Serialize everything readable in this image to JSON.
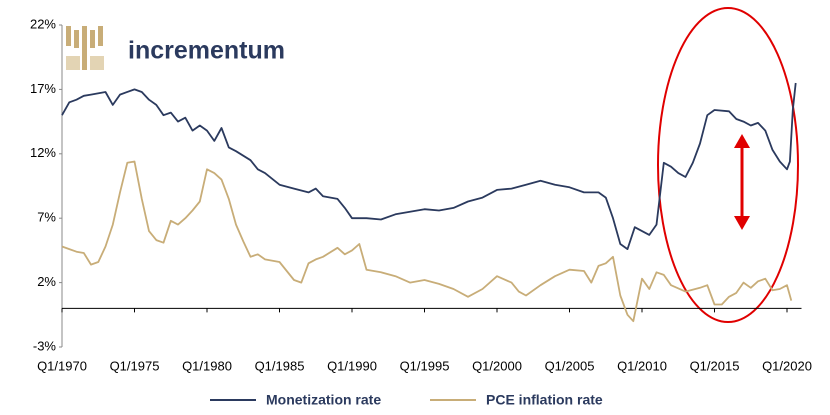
{
  "chart_data": {
    "type": "line",
    "brand": "incrementum",
    "xlim": [
      1970,
      2021
    ],
    "xticks": [
      {
        "value": 1970,
        "label": "Q1/1970"
      },
      {
        "value": 1975,
        "label": "Q1/1975"
      },
      {
        "value": 1980,
        "label": "Q1/1980"
      },
      {
        "value": 1985,
        "label": "Q1/1985"
      },
      {
        "value": 1990,
        "label": "Q1/1990"
      },
      {
        "value": 1995,
        "label": "Q1/1995"
      },
      {
        "value": 2000,
        "label": "Q1/2000"
      },
      {
        "value": 2005,
        "label": "Q1/2005"
      },
      {
        "value": 2010,
        "label": "Q1/2010"
      },
      {
        "value": 2015,
        "label": "Q1/2015"
      },
      {
        "value": 2020,
        "label": "Q1/2020"
      }
    ],
    "ylim": [
      -3,
      22
    ],
    "yticks": [
      {
        "value": 22,
        "label": "22%"
      },
      {
        "value": 17,
        "label": "17%"
      },
      {
        "value": 12,
        "label": "12%"
      },
      {
        "value": 7,
        "label": "7%"
      },
      {
        "value": 2,
        "label": "2%"
      },
      {
        "value": -3,
        "label": "-3%"
      }
    ],
    "legend": "bottom",
    "series": [
      {
        "name": "Monetization rate",
        "color": "#2b3a5e",
        "x": [
          1970,
          1970.5,
          1971,
          1971.5,
          1972,
          1973,
          1973.5,
          1974,
          1975,
          1975.5,
          1976,
          1976.5,
          1977,
          1977.5,
          1978,
          1978.5,
          1979,
          1979.5,
          1980,
          1980.5,
          1981,
          1981.5,
          1982,
          1983,
          1983.5,
          1984,
          1985,
          1986,
          1987,
          1987.5,
          1988,
          1989,
          1989.5,
          1990,
          1991,
          1992,
          1993,
          1994,
          1995,
          1996,
          1997,
          1998,
          1999,
          2000,
          2001,
          2002,
          2003,
          2004,
          2005,
          2006,
          2007,
          2007.5,
          2008,
          2008.5,
          2009,
          2009.5,
          2010,
          2010.5,
          2011,
          2011.5,
          2012,
          2012.5,
          2013,
          2013.5,
          2014,
          2014.5,
          2015,
          2016,
          2016.5,
          2017,
          2017.5,
          2018,
          2018.5,
          2019,
          2019.5,
          2020,
          2020.2,
          2020.4,
          2020.6
        ],
        "values": [
          15.0,
          16.0,
          16.2,
          16.5,
          16.6,
          16.8,
          15.8,
          16.6,
          17.0,
          16.8,
          16.2,
          15.8,
          15.0,
          15.2,
          14.5,
          14.8,
          13.8,
          14.2,
          13.8,
          13.0,
          14.0,
          12.5,
          12.2,
          11.5,
          10.8,
          10.5,
          9.6,
          9.3,
          9.0,
          9.3,
          8.7,
          8.5,
          7.8,
          7.0,
          7.0,
          6.9,
          7.3,
          7.5,
          7.7,
          7.6,
          7.8,
          8.3,
          8.6,
          9.2,
          9.3,
          9.6,
          9.9,
          9.6,
          9.4,
          9.0,
          9.0,
          8.6,
          7.0,
          5.0,
          4.6,
          6.3,
          6.0,
          5.7,
          6.5,
          11.3,
          11.0,
          10.5,
          10.2,
          11.3,
          12.8,
          15.0,
          15.4,
          15.3,
          14.7,
          14.5,
          14.2,
          14.4,
          13.8,
          12.3,
          11.4,
          10.8,
          11.4,
          15.4,
          17.5
        ]
      },
      {
        "name": "PCE inflation rate",
        "color": "#c8ad78",
        "x": [
          1970,
          1970.5,
          1971,
          1971.5,
          1972,
          1972.5,
          1973,
          1973.5,
          1974,
          1974.5,
          1975,
          1975.5,
          1976,
          1976.5,
          1977,
          1977.5,
          1978,
          1978.5,
          1979,
          1979.5,
          1980,
          1980.5,
          1981,
          1981.5,
          1982,
          1982.5,
          1983,
          1983.5,
          1984,
          1985,
          1986,
          1986.5,
          1987,
          1987.5,
          1988,
          1989,
          1989.5,
          1990,
          1990.5,
          1991,
          1992,
          1993,
          1994,
          1995,
          1996,
          1997,
          1998,
          1999,
          2000,
          2001,
          2001.5,
          2002,
          2003,
          2004,
          2005,
          2006,
          2006.5,
          2007,
          2007.5,
          2008,
          2008.5,
          2009,
          2009.4,
          2010,
          2010.5,
          2011,
          2011.5,
          2012,
          2013,
          2014,
          2014.5,
          2015,
          2015.5,
          2016,
          2016.5,
          2017,
          2017.5,
          2018,
          2018.5,
          2019,
          2019.5,
          2020,
          2020.3
        ],
        "values": [
          4.8,
          4.6,
          4.4,
          4.3,
          3.4,
          3.6,
          4.8,
          6.5,
          9.0,
          11.3,
          11.4,
          8.5,
          6.0,
          5.3,
          5.1,
          6.8,
          6.5,
          7.0,
          7.6,
          8.3,
          10.8,
          10.5,
          10.0,
          8.5,
          6.5,
          5.2,
          4.0,
          4.2,
          3.8,
          3.6,
          2.2,
          2.0,
          3.5,
          3.8,
          4.0,
          4.7,
          4.2,
          4.5,
          5.0,
          3.0,
          2.8,
          2.5,
          2.0,
          2.2,
          1.9,
          1.5,
          0.9,
          1.5,
          2.5,
          2.0,
          1.3,
          1.0,
          1.8,
          2.5,
          3.0,
          2.9,
          2.0,
          3.3,
          3.5,
          4.0,
          1.0,
          -0.5,
          -1.0,
          2.3,
          1.5,
          2.8,
          2.6,
          1.8,
          1.3,
          1.6,
          1.8,
          0.3,
          0.3,
          0.9,
          1.2,
          2.0,
          1.6,
          2.1,
          2.3,
          1.4,
          1.5,
          1.8,
          0.6
        ]
      }
    ]
  }
}
